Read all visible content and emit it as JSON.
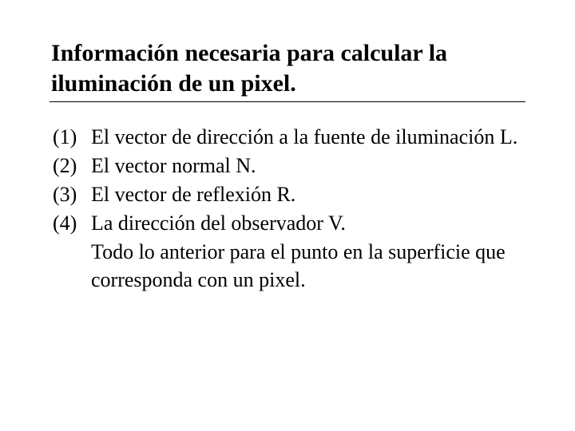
{
  "title": "Información necesaria para calcular la iluminación de un pixel.",
  "items": [
    {
      "num": "(1)",
      "text": "El vector de dirección a la fuente de iluminación L."
    },
    {
      "num": "(2)",
      "text": "El vector normal N."
    },
    {
      "num": "(3)",
      "text": "El vector de reflexión R."
    },
    {
      "num": "(4)",
      "text": "La dirección del observador V."
    }
  ],
  "tail": "Todo lo anterior para el punto en la superficie que corresponda con un pixel.",
  "colors": {
    "background": "#ffffff",
    "text": "#000000"
  },
  "typography": {
    "family": "Times New Roman",
    "title_fontsize": 30,
    "body_fontsize": 26,
    "title_weight": "bold",
    "body_weight": "normal"
  }
}
